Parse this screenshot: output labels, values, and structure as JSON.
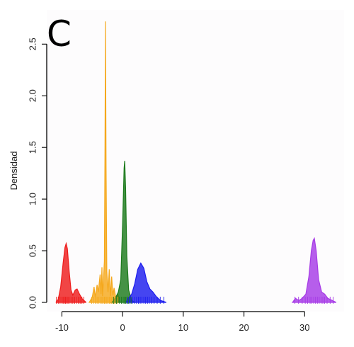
{
  "panel_label": "C",
  "chart_data": {
    "type": "area",
    "title": "",
    "xlabel": "",
    "ylabel": "Densidad",
    "xlim": [
      -12.5,
      36.5
    ],
    "ylim": [
      0,
      2.75
    ],
    "x_ticks": [
      -10,
      0,
      10,
      20,
      30
    ],
    "y_ticks": [
      0.0,
      0.5,
      1.0,
      1.5,
      2.0,
      2.5
    ],
    "x_tick_labels": [
      "-10",
      "0",
      "10",
      "20",
      "30"
    ],
    "y_tick_labels": [
      "0.0",
      "0.5",
      "1.0",
      "1.5",
      "2.0",
      "2.5"
    ],
    "grid": false,
    "legend": "none",
    "series": [
      {
        "color": "#ee1c1c",
        "rug_x": [
          -10.9,
          -10.6,
          -10.3,
          -10.0,
          -9.8,
          -9.6,
          -9.4,
          -9.2,
          -9.0,
          -8.8,
          -8.5,
          -8.2,
          -7.9,
          -7.6,
          -7.3,
          -7.0,
          -6.7,
          -6.4
        ],
        "density": [
          [
            -11.0,
            0.0
          ],
          [
            -10.6,
            0.03
          ],
          [
            -10.2,
            0.15
          ],
          [
            -9.8,
            0.38
          ],
          [
            -9.5,
            0.53
          ],
          [
            -9.3,
            0.57
          ],
          [
            -9.1,
            0.52
          ],
          [
            -8.8,
            0.3
          ],
          [
            -8.5,
            0.12
          ],
          [
            -8.2,
            0.07
          ],
          [
            -7.8,
            0.12
          ],
          [
            -7.5,
            0.13
          ],
          [
            -7.1,
            0.08
          ],
          [
            -6.6,
            0.03
          ],
          [
            -6.0,
            0.0
          ]
        ]
      },
      {
        "color": "#f5a81c",
        "rug_x": [
          -5.1,
          -4.8,
          -4.5,
          -4.2,
          -3.9,
          -3.6,
          -3.4,
          -3.2,
          -3.0,
          -2.8,
          -2.6,
          -2.4,
          -2.2,
          -2.0,
          -1.8,
          -1.6,
          -1.4,
          -1.2,
          -1.0,
          -0.8
        ],
        "density": [
          [
            -5.5,
            0.0
          ],
          [
            -5.0,
            0.05
          ],
          [
            -4.7,
            0.15
          ],
          [
            -4.5,
            0.05
          ],
          [
            -4.2,
            0.17
          ],
          [
            -4.0,
            0.1
          ],
          [
            -3.7,
            0.27
          ],
          [
            -3.55,
            0.08
          ],
          [
            -3.4,
            0.34
          ],
          [
            -3.3,
            0.06
          ],
          [
            -3.15,
            0.22
          ],
          [
            -3.0,
            0.4
          ],
          [
            -2.9,
            1.5
          ],
          [
            -2.82,
            2.72
          ],
          [
            -2.72,
            1.3
          ],
          [
            -2.6,
            0.3
          ],
          [
            -2.4,
            0.1
          ],
          [
            -2.2,
            0.32
          ],
          [
            -2.0,
            0.06
          ],
          [
            -1.8,
            0.25
          ],
          [
            -1.6,
            0.07
          ],
          [
            -1.4,
            0.14
          ],
          [
            -1.1,
            0.04
          ],
          [
            -0.8,
            0.08
          ],
          [
            -0.4,
            0.0
          ]
        ]
      },
      {
        "color": "#1c7a1c",
        "rug_x": [
          -1.5,
          -1.0,
          -0.5,
          -0.2,
          0.1,
          0.3,
          0.5,
          0.7,
          1.0,
          1.4
        ],
        "density": [
          [
            -1.8,
            0.0
          ],
          [
            -1.2,
            0.04
          ],
          [
            -0.7,
            0.1
          ],
          [
            -0.3,
            0.22
          ],
          [
            0.0,
            0.75
          ],
          [
            0.25,
            1.3
          ],
          [
            0.35,
            1.37
          ],
          [
            0.5,
            1.1
          ],
          [
            0.7,
            0.45
          ],
          [
            1.0,
            0.12
          ],
          [
            1.5,
            0.02
          ],
          [
            2.0,
            0.0
          ]
        ]
      },
      {
        "color": "#1c1cee",
        "rug_x": [
          0.8,
          1.2,
          1.6,
          2.0,
          2.3,
          2.6,
          2.9,
          3.2,
          3.5,
          3.8,
          4.1,
          4.4,
          4.8,
          5.2,
          5.7,
          6.2,
          6.8
        ],
        "density": [
          [
            0.5,
            0.0
          ],
          [
            1.0,
            0.04
          ],
          [
            1.5,
            0.08
          ],
          [
            2.0,
            0.18
          ],
          [
            2.5,
            0.32
          ],
          [
            3.0,
            0.38
          ],
          [
            3.5,
            0.33
          ],
          [
            4.0,
            0.2
          ],
          [
            4.5,
            0.13
          ],
          [
            5.0,
            0.1
          ],
          [
            5.5,
            0.06
          ],
          [
            6.2,
            0.02
          ],
          [
            7.2,
            0.0
          ]
        ]
      },
      {
        "color": "#a63ae6",
        "rug_x": [
          28.4,
          29.0,
          29.6,
          30.1,
          30.5,
          30.9,
          31.2,
          31.5,
          31.8,
          32.1,
          32.4,
          32.7,
          33.0,
          33.3,
          33.7,
          34.2,
          34.7
        ],
        "density": [
          [
            28.0,
            0.0
          ],
          [
            28.5,
            0.04
          ],
          [
            28.7,
            0.03
          ],
          [
            29.1,
            0.02
          ],
          [
            29.6,
            0.04
          ],
          [
            30.2,
            0.08
          ],
          [
            30.7,
            0.25
          ],
          [
            31.1,
            0.5
          ],
          [
            31.4,
            0.6
          ],
          [
            31.6,
            0.62
          ],
          [
            31.9,
            0.5
          ],
          [
            32.3,
            0.22
          ],
          [
            32.8,
            0.1
          ],
          [
            33.3,
            0.08
          ],
          [
            33.8,
            0.04
          ],
          [
            34.5,
            0.02
          ],
          [
            35.2,
            0.0
          ]
        ]
      }
    ]
  }
}
